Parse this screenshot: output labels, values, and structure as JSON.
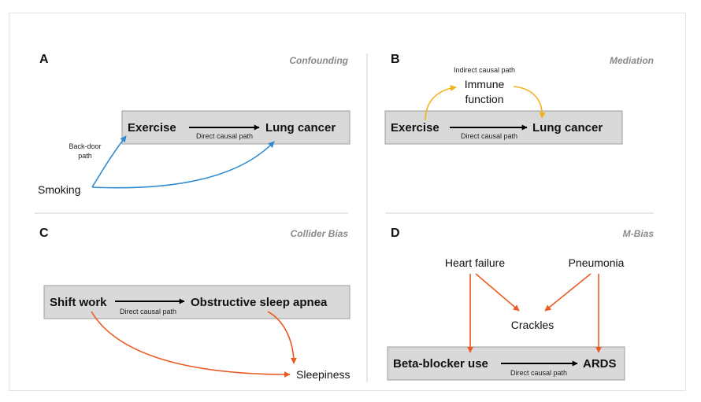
{
  "colors": {
    "backdoor": "#2f8bd0",
    "mediation": "#f3b21b",
    "bias": "#ea5b23",
    "box_fill": "#d9d9d9",
    "title_gray": "#8a8a8a"
  },
  "panel_a": {
    "letter": "A",
    "title": "Confounding",
    "exposure": "Exercise",
    "outcome": "Lung cancer",
    "direct_path": "Direct causal path",
    "confounder": "Smoking",
    "backdoor_line1": "Back-door",
    "backdoor_line2": "path"
  },
  "panel_b": {
    "letter": "B",
    "title": "Mediation",
    "exposure": "Exercise",
    "outcome": "Lung cancer",
    "direct_path": "Direct causal path",
    "indirect_path": "Indirect causal path",
    "mediator_line1": "Immune",
    "mediator_line2": "function"
  },
  "panel_c": {
    "letter": "C",
    "title": "Collider Bias",
    "exposure": "Shift work",
    "outcome": "Obstructive sleep apnea",
    "direct_path": "Direct causal path",
    "collider": "Sleepiness"
  },
  "panel_d": {
    "letter": "D",
    "title": "M-Bias",
    "exposure": "Beta-blocker use",
    "outcome": "ARDS",
    "direct_path": "Direct causal path",
    "cause_left": "Heart failure",
    "cause_right": "Pneumonia",
    "collider": "Crackles"
  }
}
